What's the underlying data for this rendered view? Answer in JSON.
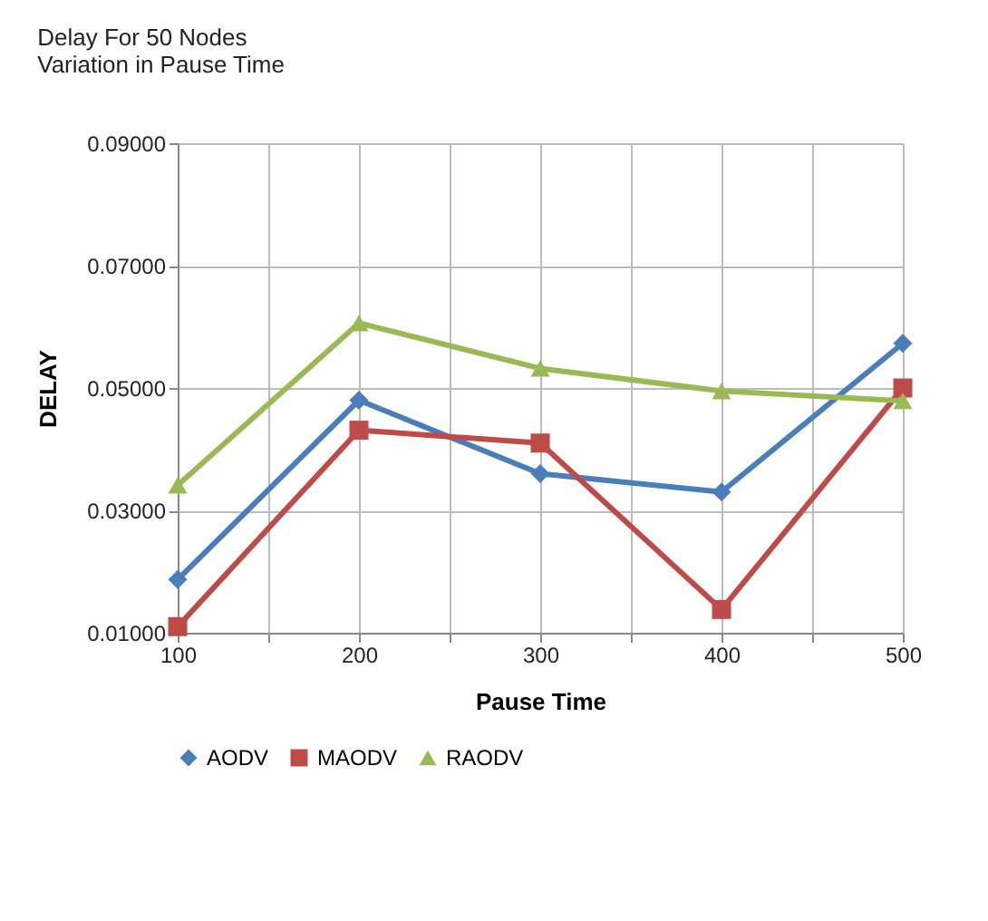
{
  "chart_data": {
    "type": "line",
    "title": [
      "Delay For 50 Nodes",
      "Variation in Pause Time"
    ],
    "xlabel": "Pause Time",
    "ylabel": "DELAY",
    "x": [
      100,
      200,
      300,
      400,
      500
    ],
    "series": [
      {
        "name": "AODV",
        "color": "#4a7ebb",
        "marker": "diamond",
        "values": [
          0.0187,
          0.048,
          0.036,
          0.033,
          0.0573
        ]
      },
      {
        "name": "MAODV",
        "color": "#be4b48",
        "marker": "square",
        "values": [
          0.011,
          0.0431,
          0.041,
          0.0138,
          0.05
        ]
      },
      {
        "name": "RAODV",
        "color": "#98b954",
        "marker": "triangle",
        "values": [
          0.0341,
          0.0606,
          0.0532,
          0.0495,
          0.0479
        ]
      }
    ],
    "xlim": [
      100,
      500
    ],
    "xticks": [
      100,
      {
        "value": 150,
        "label": null
      },
      200,
      {
        "value": 250,
        "label": null
      },
      300,
      {
        "value": 350,
        "label": null
      },
      400,
      {
        "value": 450,
        "label": null
      },
      500
    ],
    "ylim": [
      0.01,
      0.09
    ],
    "yticks": [
      {
        "value": 0.01,
        "label": "0.01000"
      },
      {
        "value": 0.03,
        "label": "0.03000"
      },
      {
        "value": 0.05,
        "label": "0.05000"
      },
      {
        "value": 0.07,
        "label": "0.07000"
      },
      {
        "value": 0.09,
        "label": "0.09000"
      }
    ],
    "grid": true,
    "legend": "bottom",
    "line_style": "solid"
  }
}
